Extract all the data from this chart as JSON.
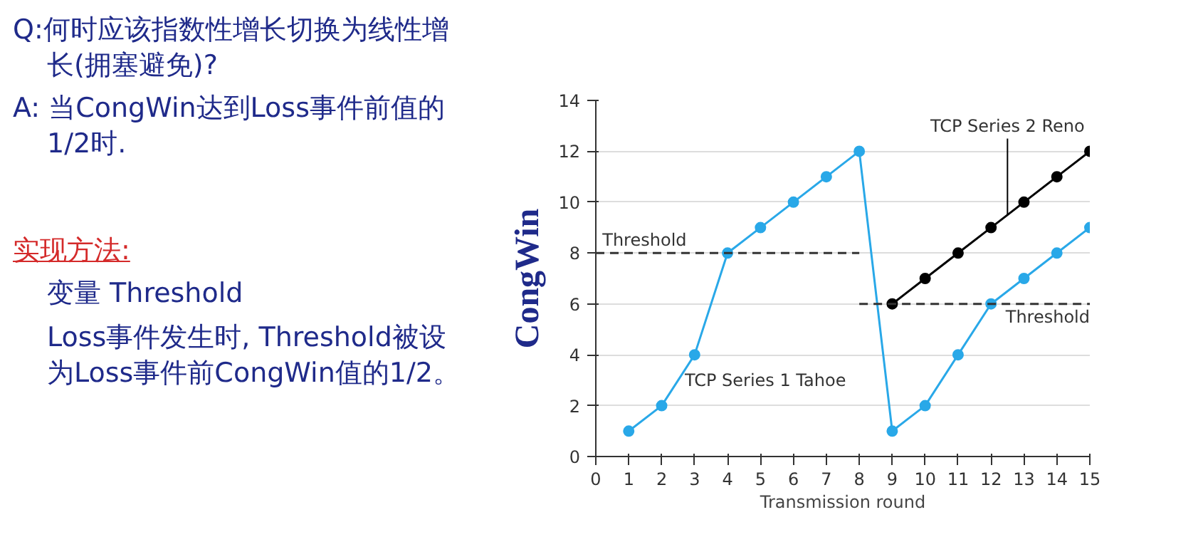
{
  "chart_data": {
    "type": "line",
    "ylabel": "CongWin",
    "xlabel": "Transmission round",
    "x": [
      1,
      2,
      3,
      4,
      5,
      6,
      7,
      8,
      9,
      10,
      11,
      12,
      13,
      14,
      15
    ],
    "series": [
      {
        "name": "TCP Series 1 Tahoe",
        "color": "#29a8e8",
        "values": [
          1,
          2,
          4,
          8,
          9,
          10,
          11,
          12,
          1,
          2,
          4,
          6,
          7,
          8,
          9
        ]
      },
      {
        "name": "TCP Series 2 Reno",
        "color": "#000000",
        "x": [
          9,
          10,
          11,
          12,
          13,
          14,
          15
        ],
        "values": [
          6,
          7,
          8,
          9,
          10,
          11,
          12
        ]
      },
      {
        "name": "Threshold",
        "color": "#333333",
        "x": [
          0,
          8
        ],
        "values": [
          8,
          8
        ],
        "line_style": "dashed",
        "marker": "none"
      },
      {
        "name": "Threshold",
        "color": "#333333",
        "x": [
          8,
          15
        ],
        "values": [
          6,
          6
        ],
        "line_style": "dashed",
        "marker": "none"
      }
    ],
    "xlim": [
      0,
      15
    ],
    "xticks": [
      0,
      1,
      2,
      3,
      4,
      5,
      6,
      7,
      8,
      9,
      10,
      11,
      12,
      13,
      14,
      15
    ],
    "ylim": [
      0,
      14
    ],
    "yticks": [
      0,
      2,
      4,
      6,
      8,
      10,
      12,
      14
    ],
    "grid": "y",
    "marker": "circle",
    "line_style": "solid",
    "annotations": [
      "Q:何时应该指数性增长切换为线性增长(拥塞避免)?",
      "A: 当CongWin达到Loss事件前值的1/2时.",
      "实现方法:",
      "变量 Threshold",
      "Loss事件发生时, Threshold被设为Loss事件前CongWin值的1/2。"
    ]
  }
}
